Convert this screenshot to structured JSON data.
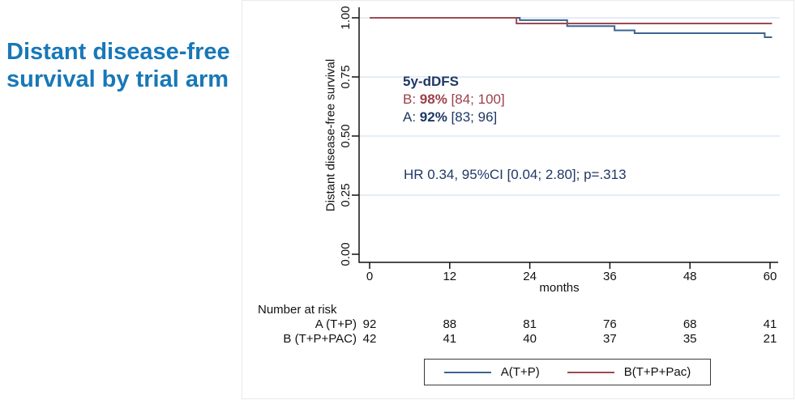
{
  "slide": {
    "title_line1": "Distant disease-free",
    "title_line2": "survival by trial arm"
  },
  "colors": {
    "title_blue": "#1878b8",
    "navy": "#1f3864",
    "maroon": "#9c3f4a",
    "line_blue": "#3c6390",
    "line_red": "#9c4a51",
    "gridline": "#dce7f3",
    "axis": "#111111"
  },
  "chart_data": {
    "type": "line",
    "variant": "kaplan_meier_step_curves",
    "title": "",
    "xlabel": "months",
    "ylabel": "Distant disease-free survival",
    "xlim": [
      0,
      60
    ],
    "ylim": [
      0.0,
      1.0
    ],
    "xticks": [
      0,
      12,
      24,
      36,
      48,
      60
    ],
    "ytick_values": [
      0,
      0.25,
      0.5,
      0.75,
      1.0
    ],
    "ytick_labels": [
      "0.00",
      "0.25",
      "0.50",
      "0.75",
      "1.00"
    ],
    "grid": "horizontal light-blue gridlines at y ticks",
    "legend_position": "bottom-center boxed",
    "series": [
      {
        "name": "A(T+P)",
        "color": "#3c6390",
        "step_points": [
          [
            0,
            1.0
          ],
          [
            22.5,
            1.0
          ],
          [
            22.5,
            0.99
          ],
          [
            29.6,
            0.99
          ],
          [
            29.6,
            0.965
          ],
          [
            36.7,
            0.965
          ],
          [
            36.7,
            0.947
          ],
          [
            39.7,
            0.947
          ],
          [
            39.7,
            0.935
          ],
          [
            59.2,
            0.935
          ],
          [
            59.2,
            0.918
          ],
          [
            60.3,
            0.918
          ]
        ]
      },
      {
        "name": "B(T+P+Pac)",
        "color": "#9c4a51",
        "step_points": [
          [
            0,
            1.0
          ],
          [
            22.0,
            1.0
          ],
          [
            22.0,
            0.976
          ],
          [
            60.3,
            0.976
          ]
        ]
      }
    ],
    "annotations": {
      "heading": "5y-dDFS",
      "b_prefix": "B: ",
      "b_value": "98%",
      "b_ci": " [84; 100]",
      "a_prefix": "A: ",
      "a_value": "92%",
      "a_ci": " [83; 96]",
      "hr": "HR 0.34, 95%CI [0.04; 2.80]; p=.313"
    },
    "number_at_risk": {
      "header": "Number at risk",
      "rows": [
        {
          "label": "A (T+P)",
          "values": [
            "92",
            "88",
            "81",
            "76",
            "68",
            "41"
          ]
        },
        {
          "label": "B (T+P+PAC)",
          "values": [
            "42",
            "41",
            "40",
            "37",
            "35",
            "21"
          ]
        }
      ]
    },
    "legend": {
      "items": [
        {
          "label": "A(T+P)",
          "color": "#3c6390"
        },
        {
          "label": "B(T+P+Pac)",
          "color": "#9c4a51"
        }
      ]
    }
  }
}
